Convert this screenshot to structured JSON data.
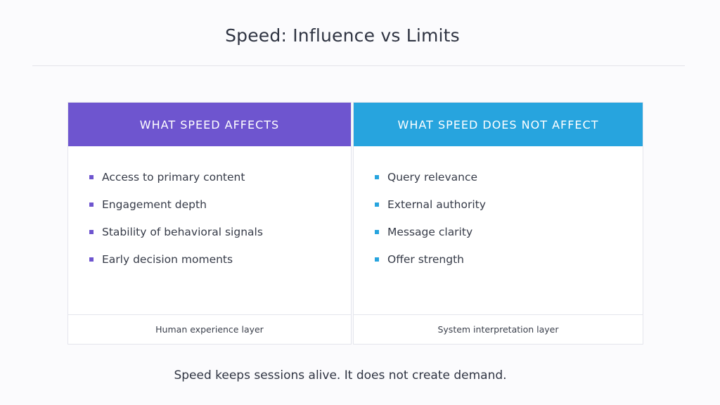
{
  "title": "Speed: Influence vs Limits",
  "left_panel": {
    "header": "WHAT SPEED AFFECTS",
    "items": [
      "Access to primary content",
      "Engagement depth",
      "Stability of behavioral signals",
      "Early decision moments"
    ],
    "footer": "Human experience layer",
    "accent_color": "#6e55cf"
  },
  "right_panel": {
    "header": "WHAT SPEED DOES NOT AFFECT",
    "items": [
      "Query relevance",
      "External authority",
      "Message clarity",
      "Offer strength"
    ],
    "footer": "System interpretation layer",
    "accent_color": "#27a4de"
  },
  "caption": "Speed keeps sessions alive. It does not create demand."
}
